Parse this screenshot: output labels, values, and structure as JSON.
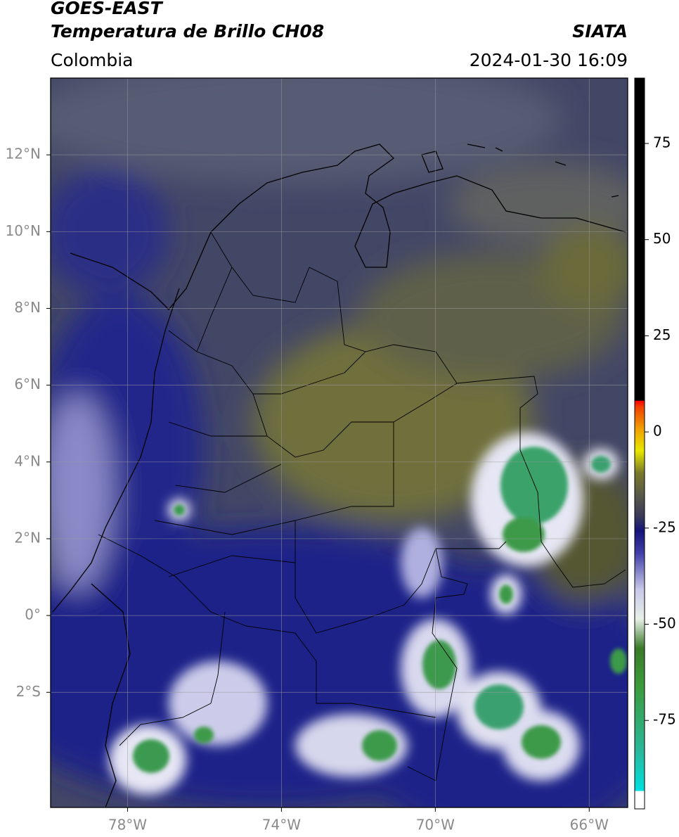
{
  "header": {
    "title": "GOES-EAST",
    "subtitle": "Temperatura de Brillo CH08",
    "source": "SIATA",
    "region": "Colombia",
    "datetime": "2024-01-30 16:09"
  },
  "map": {
    "xlim": [
      -80,
      -65
    ],
    "ylim": [
      -5,
      14
    ],
    "xticks": [
      {
        "value": -78,
        "label": "78°W"
      },
      {
        "value": -74,
        "label": "74°W"
      },
      {
        "value": -70,
        "label": "70°W"
      },
      {
        "value": -66,
        "label": "66°W"
      }
    ],
    "yticks": [
      {
        "value": 12,
        "label": "12°N"
      },
      {
        "value": 10,
        "label": "10°N"
      },
      {
        "value": 8,
        "label": "8°N"
      },
      {
        "value": 6,
        "label": "6°N"
      },
      {
        "value": 4,
        "label": "4°N"
      },
      {
        "value": 2,
        "label": "2°N"
      },
      {
        "value": 0,
        "label": "0°"
      },
      {
        "value": -2,
        "label": "2°S"
      }
    ]
  },
  "colorbar": {
    "lim": [
      -98,
      92
    ],
    "ticks": [
      75,
      50,
      25,
      0,
      -25,
      -50,
      -75
    ]
  }
}
